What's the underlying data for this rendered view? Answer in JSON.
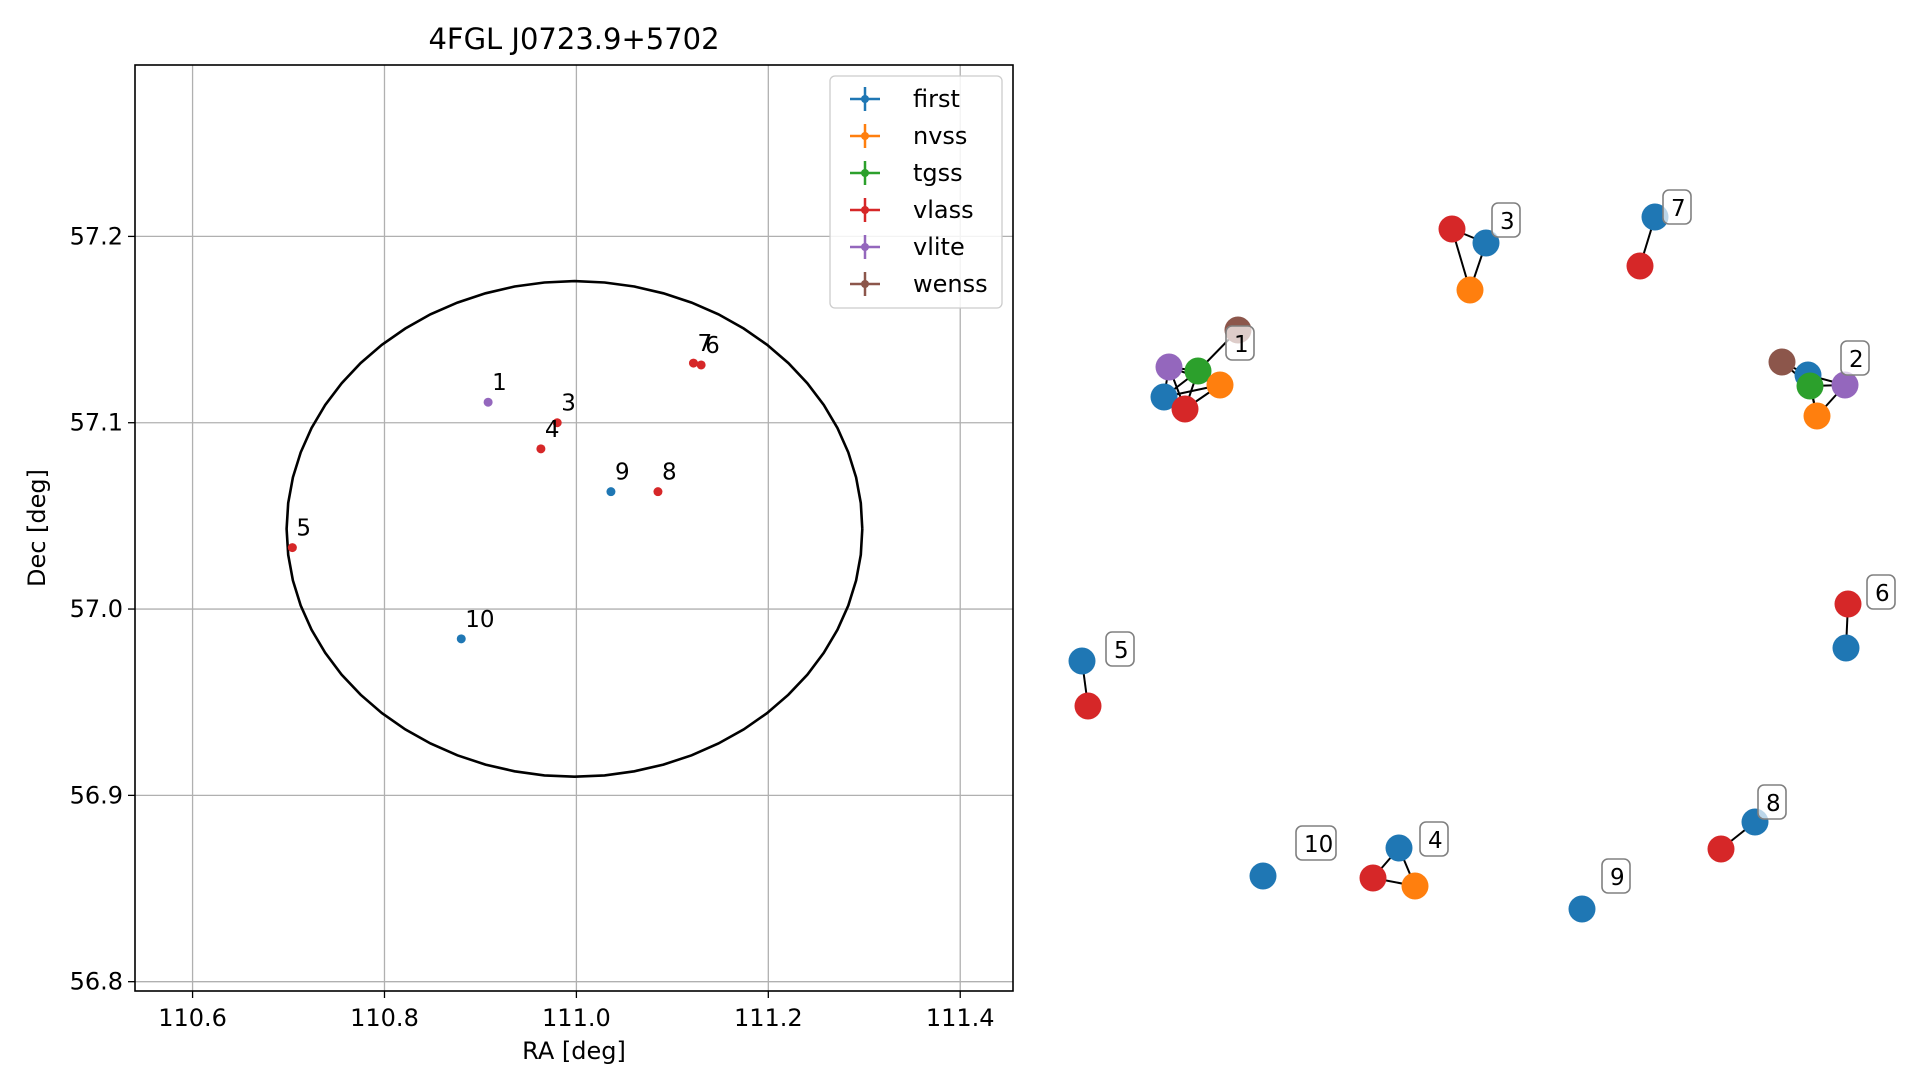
{
  "chart_data": [
    {
      "type": "scatter",
      "title": "4FGL J0723.9+5702",
      "xlabel": "RA [deg]",
      "ylabel": "Dec [deg]",
      "xlim": [
        110.54,
        111.455
      ],
      "ylim": [
        56.795,
        57.292
      ],
      "xticks": [
        110.6,
        110.8,
        111.0,
        111.2,
        111.4
      ],
      "yticks": [
        56.8,
        56.9,
        57.0,
        57.1,
        57.2
      ],
      "xtick_labels": [
        "110.6",
        "110.8",
        "111.0",
        "111.2",
        "111.4"
      ],
      "ytick_labels": [
        "56.8",
        "56.9",
        "57.0",
        "57.1",
        "57.2"
      ],
      "grid": true,
      "legend_position": "top-right",
      "legend": [
        {
          "name": "first",
          "color": "#1f77b4"
        },
        {
          "name": "nvss",
          "color": "#ff7f0e"
        },
        {
          "name": "tgss",
          "color": "#2ca02c"
        },
        {
          "name": "vlass",
          "color": "#d62728"
        },
        {
          "name": "vlite",
          "color": "#9467bd"
        },
        {
          "name": "wenss",
          "color": "#8c564b"
        }
      ],
      "ellipse": {
        "center": [
          110.998,
          57.043
        ],
        "semi_axis_ra": 0.3,
        "semi_axis_dec": 0.133,
        "color": "#000000"
      },
      "points": [
        {
          "label": "1",
          "ra": 110.908,
          "dec": 57.111,
          "color": "#9467bd"
        },
        {
          "label": "3",
          "ra": 110.98,
          "dec": 57.1,
          "color": "#d62728"
        },
        {
          "label": "4",
          "ra": 110.963,
          "dec": 57.086,
          "color": "#d62728"
        },
        {
          "label": "5",
          "ra": 110.704,
          "dec": 57.033,
          "color": "#d62728"
        },
        {
          "label": "6",
          "ra": 111.13,
          "dec": 57.131,
          "color": "#d62728"
        },
        {
          "label": "7",
          "ra": 111.122,
          "dec": 57.132,
          "color": "#d62728"
        },
        {
          "label": "8",
          "ra": 111.085,
          "dec": 57.063,
          "color": "#d62728"
        },
        {
          "label": "9",
          "ra": 111.036,
          "dec": 57.063,
          "color": "#1f77b4"
        },
        {
          "label": "10",
          "ra": 110.88,
          "dec": 56.984,
          "color": "#1f77b4"
        }
      ]
    },
    {
      "type": "network",
      "clusters": [
        {
          "label": "1"
        },
        {
          "label": "2"
        },
        {
          "label": "3"
        },
        {
          "label": "4"
        },
        {
          "label": "5"
        },
        {
          "label": "6"
        },
        {
          "label": "7"
        },
        {
          "label": "8"
        },
        {
          "label": "9"
        },
        {
          "label": "10"
        }
      ]
    }
  ]
}
